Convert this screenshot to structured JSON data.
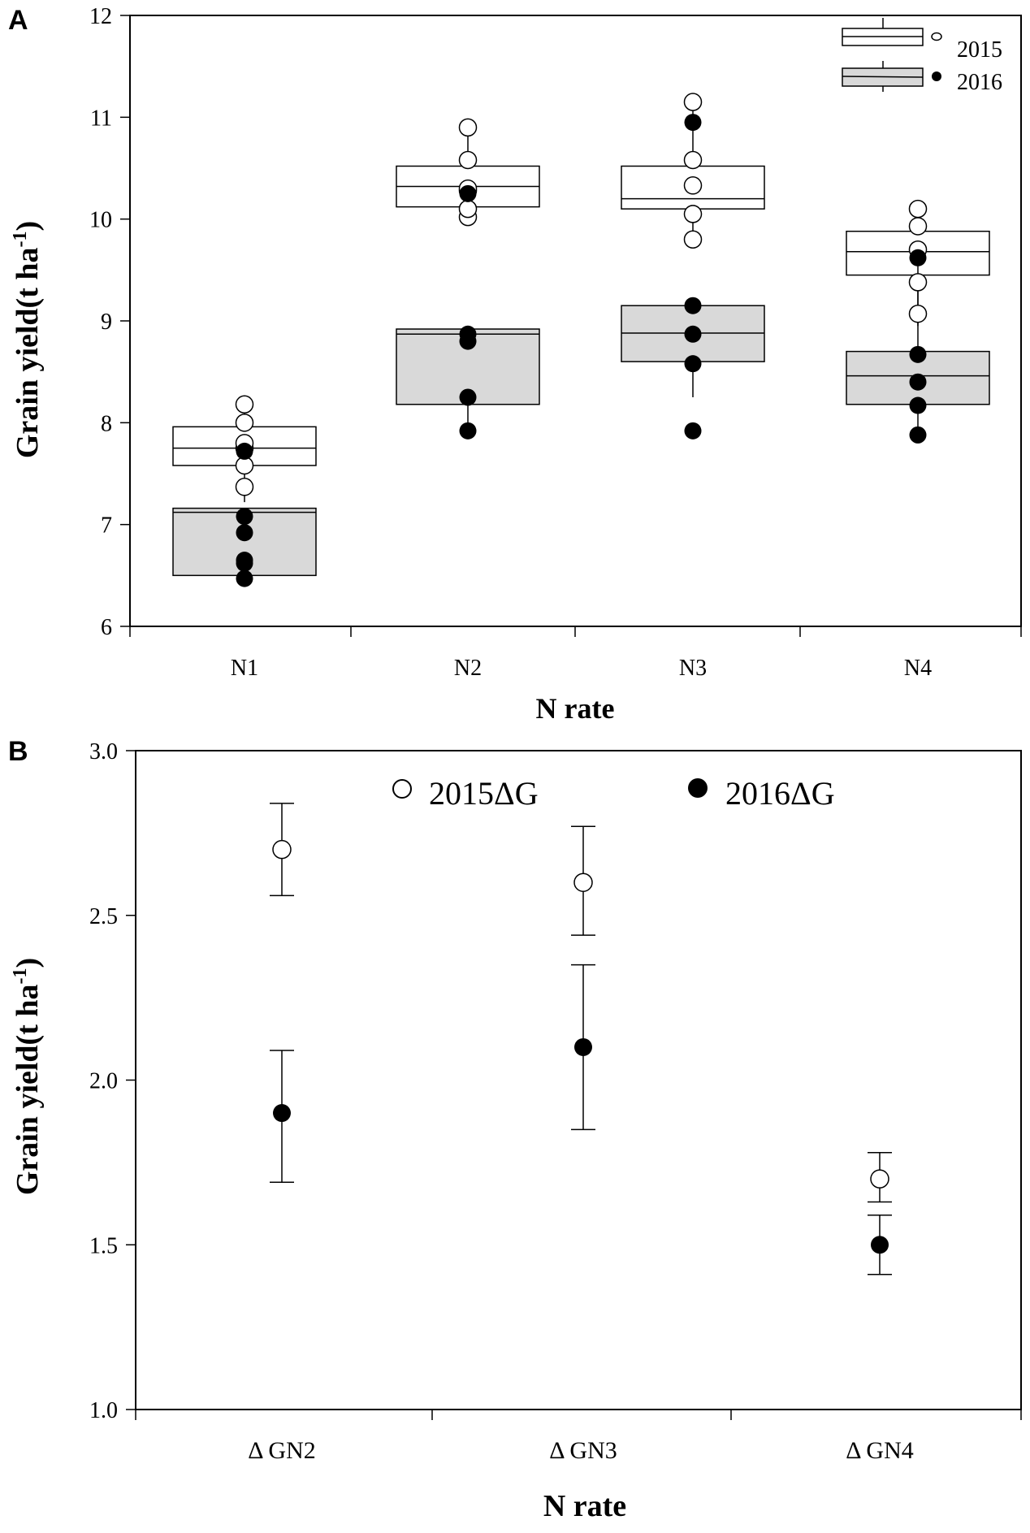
{
  "chart_data": [
    {
      "panel_label": "A",
      "type": "box",
      "xlabel": "N rate",
      "ylabel": "Grain yield(t ha",
      "ylabel_sup": "-1",
      "ylabel_close": ")",
      "ylim": [
        6,
        12
      ],
      "yticks": [
        "6",
        "7",
        "8",
        "9",
        "10",
        "11",
        "12"
      ],
      "categories": [
        "N1",
        "N2",
        "N3",
        "N4"
      ],
      "legend": [
        {
          "label": "2015",
          "fill": "#ffffff",
          "marker": "open-circle"
        },
        {
          "label": "2016",
          "fill": "#d9d9d9",
          "marker": "filled-circle"
        }
      ],
      "series": [
        {
          "name": "2015",
          "fill": "#ffffff",
          "boxes": [
            {
              "q1": 7.58,
              "median": 7.75,
              "q3": 7.96,
              "whisker_low": 7.22,
              "whisker_high": 8.15
            },
            {
              "q1": 10.12,
              "median": 10.32,
              "q3": 10.52,
              "whisker_low": 10.02,
              "whisker_high": 10.9
            },
            {
              "q1": 10.1,
              "median": 10.2,
              "q3": 10.52,
              "whisker_low": 9.82,
              "whisker_high": 11.15
            },
            {
              "q1": 9.45,
              "median": 9.68,
              "q3": 9.88,
              "whisker_low": 8.95,
              "whisker_high": 10.1
            }
          ],
          "points": [
            [
              7.58,
              7.75,
              7.8,
              8.0,
              8.18,
              7.37
            ],
            [
              10.02,
              10.1,
              10.28,
              10.3,
              10.58,
              10.9
            ],
            [
              9.8,
              10.05,
              10.33,
              10.58,
              11.15
            ],
            [
              9.07,
              9.38,
              9.7,
              9.93,
              10.1
            ]
          ]
        },
        {
          "name": "2016",
          "fill": "#d9d9d9",
          "boxes": [
            {
              "q1": 6.5,
              "median": 7.12,
              "q3": 7.16,
              "whisker_low": 6.5,
              "whisker_high": 7.16
            },
            {
              "q1": 8.18,
              "median": 8.87,
              "q3": 8.92,
              "whisker_low": 7.95,
              "whisker_high": 8.92
            },
            {
              "q1": 8.6,
              "median": 8.88,
              "q3": 9.15,
              "whisker_low": 8.25,
              "whisker_high": 9.15
            },
            {
              "q1": 8.18,
              "median": 8.46,
              "q3": 8.7,
              "whisker_low": 7.88,
              "whisker_high": 9.62
            }
          ],
          "points": [
            [
              6.47,
              6.62,
              6.65,
              6.92,
              7.08,
              7.72
            ],
            [
              7.92,
              8.25,
              8.8,
              8.87,
              10.25
            ],
            [
              7.92,
              8.58,
              8.87,
              9.15,
              10.95
            ],
            [
              7.88,
              8.17,
              8.4,
              8.67,
              9.62
            ]
          ]
        }
      ]
    },
    {
      "panel_label": "B",
      "type": "scatter",
      "xlabel": "N rate",
      "ylabel": "Grain yield(t ha",
      "ylabel_sup": "-1",
      "ylabel_close": ")",
      "ylim": [
        1.0,
        3.0
      ],
      "yticks": [
        "1.0",
        "1.5",
        "2.0",
        "2.5",
        "3.0"
      ],
      "categories": [
        "Δ GN2",
        "Δ GN3",
        "Δ GN4"
      ],
      "series": [
        {
          "name": "2015ΔG",
          "marker": "open-circle",
          "values": [
            2.7,
            2.6,
            1.7
          ],
          "err_low": [
            2.56,
            2.44,
            1.63
          ],
          "err_high": [
            2.84,
            2.77,
            1.78
          ]
        },
        {
          "name": "2016ΔG",
          "marker": "filled-circle",
          "values": [
            1.9,
            2.1,
            1.5
          ],
          "err_low": [
            1.69,
            1.85,
            1.41
          ],
          "err_high": [
            2.09,
            2.35,
            1.59
          ]
        }
      ]
    }
  ]
}
